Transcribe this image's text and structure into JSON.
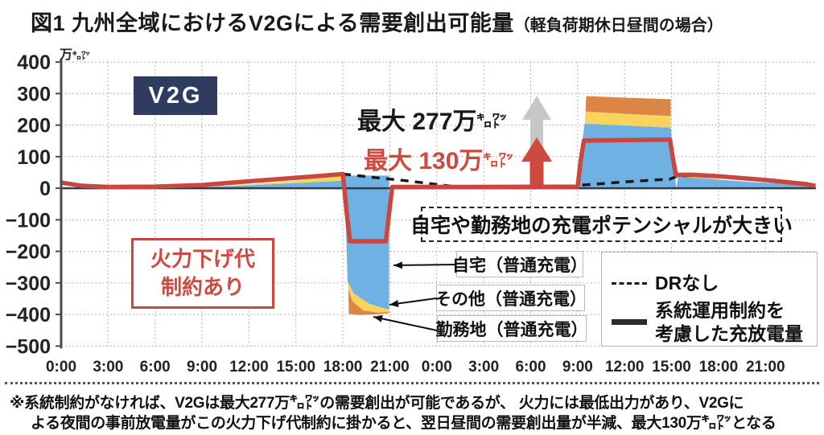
{
  "title": {
    "main": "図1 九州全域におけるV2Gによる需要創出可能量",
    "note": "（軽負荷期休日昼間の場合）"
  },
  "y_unit": {
    "main": "万",
    "small": "㌔㍗"
  },
  "badge_v2g": "V2G",
  "annotations": {
    "max277": {
      "text": "最大 277万",
      "unit": "㌔㍗"
    },
    "max130": {
      "text": "最大 130万",
      "unit": "㌔㍗"
    },
    "fire_box": {
      "line1": "火力下げ代",
      "line2": "制約あり"
    },
    "potential_box": "自宅や勤務地の充電ポテンシャルが大きい",
    "label_home": "自宅（普通充電）",
    "label_other": "その他（普通充電）",
    "label_work": "勤務地（普通充電）"
  },
  "legend": {
    "dr_none": "DRなし",
    "constrained1": "系統運用制約を",
    "constrained2": "考慮した充放電量"
  },
  "footnote": {
    "line1": "※系統制約がなければ、V2Gは最大277万㌔㍗の需要創出が可能であるが、 火力には最低出力があり、V2Gに",
    "line2": "よる夜間の事前放電量がこの火力下げ代制約に掛かると、翌日昼間の需要創出量が半減、最大130万㌔㍗となる"
  },
  "colors": {
    "red": "#C9473E",
    "red_text": "#CE4A3E",
    "navy": "#2F3B5F",
    "blue": "#6FB1E3",
    "yellow": "#F9D45C",
    "orange": "#DD8544",
    "gray_arrow": "#C7C7C9",
    "dashed_line": "#1a1a1a",
    "zero_line": "#2D3B49",
    "axis": "#4a4a4a"
  },
  "chart_data": {
    "type": "area",
    "title": "九州全域におけるV2Gによる需要創出可能量（軽負荷期休日昼間の場合）",
    "ylabel": "万キロワット",
    "ylim": [
      -500,
      400
    ],
    "x_hours_range": [
      0,
      48
    ],
    "grid": true,
    "legend_position": "bottom-right",
    "yticks": [
      {
        "v": 400,
        "label": "400"
      },
      {
        "v": 300,
        "label": "300"
      },
      {
        "v": 200,
        "label": "200"
      },
      {
        "v": 100,
        "label": "100"
      },
      {
        "v": 0,
        "label": "0"
      },
      {
        "v": -100,
        "label": "−100"
      },
      {
        "v": -200,
        "label": "−200"
      },
      {
        "v": -300,
        "label": "−300"
      },
      {
        "v": -400,
        "label": "−400"
      },
      {
        "v": -500,
        "label": "−500"
      }
    ],
    "ygrid": [
      400,
      300,
      200,
      100,
      -100,
      -200,
      -300,
      -400,
      -500
    ],
    "xticks": [
      "0:00",
      "3:00",
      "6:00",
      "9:00",
      "12:00",
      "15:00",
      "18:00",
      "21:00",
      "0:00",
      "3:00",
      "6:00",
      "9:00",
      "12:00",
      "15:00",
      "18:00",
      "21:00"
    ],
    "areas": [
      {
        "name": "自宅（普通充電）",
        "color": "#6FB1E3",
        "polygons": [
          [
            [
              7,
              0
            ],
            [
              10,
              5
            ],
            [
              14,
              14
            ],
            [
              18,
              24
            ],
            [
              18,
              0
            ]
          ],
          [
            [
              18.1,
              40
            ],
            [
              20.95,
              40
            ],
            [
              20.95,
              -385
            ],
            [
              19.7,
              -367
            ],
            [
              18.7,
              -334
            ],
            [
              18.3,
              -295
            ],
            [
              18.1,
              40
            ]
          ],
          [
            [
              33.05,
              0
            ],
            [
              33.3,
              150
            ],
            [
              33.45,
              205
            ],
            [
              36,
              199
            ],
            [
              38.95,
              192
            ],
            [
              39.2,
              60
            ],
            [
              39.3,
              0
            ]
          ],
          [
            [
              39.3,
              0
            ],
            [
              39.42,
              36
            ],
            [
              41,
              31
            ],
            [
              44,
              20
            ],
            [
              48.2,
              9
            ],
            [
              48.2,
              0
            ]
          ]
        ]
      },
      {
        "name": "その他（普通充電）",
        "color": "#F9D45C",
        "polygons": [
          [
            [
              9,
              3
            ],
            [
              12,
              12
            ],
            [
              15,
              24
            ],
            [
              18,
              40
            ],
            [
              18,
              24
            ],
            [
              14,
              14
            ],
            [
              10,
              5
            ]
          ],
          [
            [
              18.3,
              -295
            ],
            [
              18.7,
              -334
            ],
            [
              19.7,
              -367
            ],
            [
              20.95,
              -385
            ],
            [
              20.95,
              -392
            ],
            [
              20.2,
              -394
            ],
            [
              19.3,
              -387
            ],
            [
              18.6,
              -358
            ],
            [
              18.35,
              -320
            ]
          ],
          [
            [
              33.45,
              205
            ],
            [
              33.5,
              243
            ],
            [
              36,
              236
            ],
            [
              38.95,
              229
            ],
            [
              38.95,
              192
            ],
            [
              36,
              199
            ]
          ],
          [
            [
              39.42,
              36
            ],
            [
              39.5,
              43
            ],
            [
              40.7,
              37
            ],
            [
              42.2,
              29
            ],
            [
              42.2,
              28
            ],
            [
              41,
              31
            ]
          ]
        ]
      },
      {
        "name": "勤務地（普通充電）",
        "color": "#DD8544",
        "polygons": [
          [
            [
              18.35,
              -320
            ],
            [
              18.6,
              -358
            ],
            [
              19.3,
              -387
            ],
            [
              20.2,
              -394
            ],
            [
              20.95,
              -392
            ],
            [
              20.95,
              -396
            ],
            [
              20,
              -400
            ],
            [
              19,
              -402
            ],
            [
              18.38,
              -398
            ]
          ],
          [
            [
              33.5,
              243
            ],
            [
              33.55,
              292
            ],
            [
              36,
              287
            ],
            [
              38.95,
              282
            ],
            [
              38.95,
              229
            ],
            [
              36,
              236
            ]
          ]
        ]
      }
    ],
    "lines": [
      {
        "id": "dr-none",
        "name": "DRなし",
        "style": "dashed",
        "color": "#1a1a1a",
        "width": 3.5,
        "dash": "10 8",
        "segments": [
          [
            [
              18,
              45
            ],
            [
              20,
              34
            ],
            [
              22,
              24
            ],
            [
              24,
              12
            ],
            [
              25.2,
              5
            ]
          ],
          [
            [
              33.3,
              10
            ],
            [
              36,
              20
            ],
            [
              38.9,
              29
            ],
            [
              39.35,
              38
            ],
            [
              40.6,
              41
            ]
          ]
        ]
      },
      {
        "id": "constrained",
        "name": "系統運用制約を考慮した充放電量",
        "style": "solid",
        "color": "#C9473E",
        "width": 5.5,
        "segments": [
          [
            [
              0,
              18
            ],
            [
              1.3,
              8
            ],
            [
              3,
              4
            ],
            [
              6,
              5
            ],
            [
              9,
              10
            ],
            [
              12,
              22
            ],
            [
              15,
              33
            ],
            [
              18,
              45
            ],
            [
              18.25,
              -80
            ],
            [
              18.45,
              -168
            ],
            [
              20.75,
              -168
            ],
            [
              20.95,
              -80
            ],
            [
              21.15,
              4
            ],
            [
              26,
              4
            ],
            [
              33,
              5
            ],
            [
              33.2,
              90
            ],
            [
              33.4,
              151
            ],
            [
              38.9,
              154
            ],
            [
              39.1,
              90
            ],
            [
              39.28,
              42
            ],
            [
              40.2,
              43
            ],
            [
              42,
              38
            ],
            [
              45,
              26
            ],
            [
              47.6,
              13
            ],
            [
              48.2,
              7
            ]
          ]
        ]
      }
    ]
  }
}
